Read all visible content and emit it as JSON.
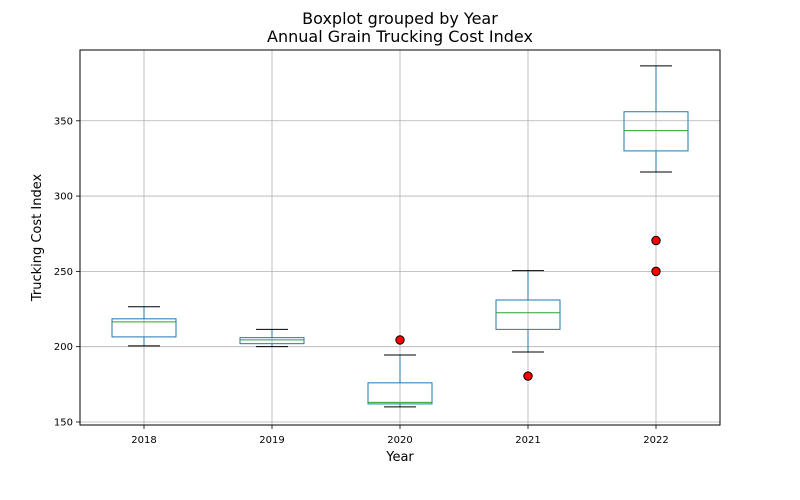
{
  "chart_data": {
    "type": "boxplot",
    "suptitle": "Boxplot grouped by Year",
    "title": "Annual Grain Trucking Cost Index",
    "xlabel": "Year",
    "ylabel": "Trucking Cost Index",
    "ylim": [
      148,
      397
    ],
    "yticks": [
      150,
      200,
      250,
      300,
      350
    ],
    "grid": true,
    "colors": {
      "box": "#1f77b4",
      "median": "#2ca02c",
      "whisker": "#1f77b4",
      "cap": "#000000",
      "flier_fill": "#ff0000",
      "flier_edge": "#000000",
      "grid": "#b0b0b0"
    },
    "categories": [
      "2018",
      "2019",
      "2020",
      "2021",
      "2022"
    ],
    "boxes": [
      {
        "category": "2018",
        "whislo": 200.5,
        "q1": 206.5,
        "med": 216.5,
        "q3": 218.5,
        "whishi": 226.5,
        "fliers": []
      },
      {
        "category": "2019",
        "whislo": 200.0,
        "q1": 202.0,
        "med": 204.5,
        "q3": 206.0,
        "whishi": 211.5,
        "fliers": []
      },
      {
        "category": "2020",
        "whislo": 160.0,
        "q1": 162.0,
        "med": 163.0,
        "q3": 176.0,
        "whishi": 194.5,
        "fliers": [
          204.5
        ]
      },
      {
        "category": "2021",
        "whislo": 196.5,
        "q1": 211.5,
        "med": 222.5,
        "q3": 231.0,
        "whishi": 250.5,
        "fliers": [
          180.5
        ]
      },
      {
        "category": "2022",
        "whislo": 316.0,
        "q1": 330.0,
        "med": 343.5,
        "q3": 356.0,
        "whishi": 386.5,
        "fliers": [
          270.5,
          250.0
        ]
      }
    ]
  }
}
